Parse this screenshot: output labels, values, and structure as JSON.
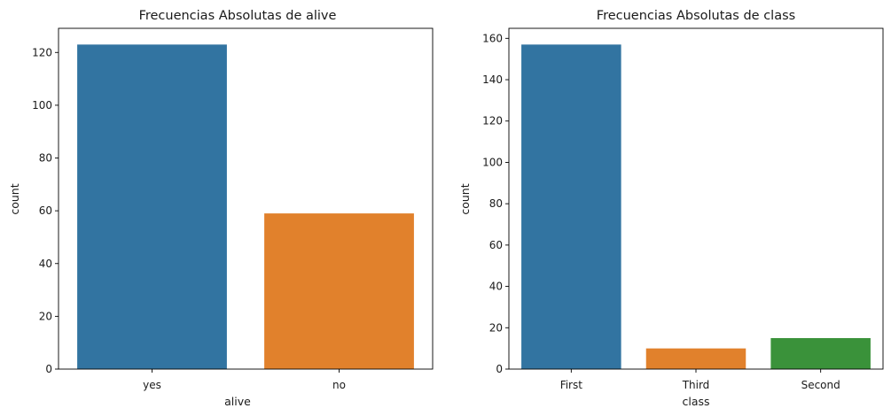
{
  "chart_data": [
    {
      "type": "bar",
      "title": "Frecuencias Absolutas de alive",
      "xlabel": "alive",
      "ylabel": "count",
      "categories": [
        "yes",
        "no"
      ],
      "values": [
        123,
        59
      ],
      "colors": [
        "#3274a1",
        "#e1812c"
      ],
      "ylim": [
        0,
        129.15
      ],
      "yticks": [
        0,
        20,
        40,
        60,
        80,
        100,
        120
      ],
      "grid": false
    },
    {
      "type": "bar",
      "title": "Frecuencias Absolutas de class",
      "xlabel": "class",
      "ylabel": "count",
      "categories": [
        "First",
        "Third",
        "Second"
      ],
      "values": [
        157,
        10,
        15
      ],
      "colors": [
        "#3274a1",
        "#e1812c",
        "#3a923a"
      ],
      "ylim": [
        0,
        164.85
      ],
      "yticks": [
        0,
        20,
        40,
        60,
        80,
        100,
        120,
        140,
        160
      ],
      "grid": false
    }
  ]
}
